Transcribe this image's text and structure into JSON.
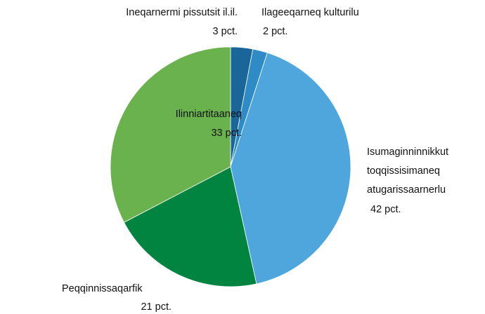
{
  "chart_data": {
    "type": "pie",
    "categories": [
      "Ineqarnermi pissutsit il.il.",
      "Ilageeqarneq kulturilu",
      "Isumaginninnikkut toqqissisimaneq atugarissaarnerlu",
      "Peqqinnissaqarfik",
      "Ilinniartitaaneq"
    ],
    "values": [
      3,
      2,
      42,
      21,
      33
    ],
    "value_labels": [
      "3 pct.",
      "2 pct.",
      "42 pct.",
      "21 pct.",
      "33 pct."
    ],
    "colors": [
      "#1b6699",
      "#2e8bc6",
      "#4fa6dc",
      "#00843f",
      "#6ab24e"
    ]
  }
}
